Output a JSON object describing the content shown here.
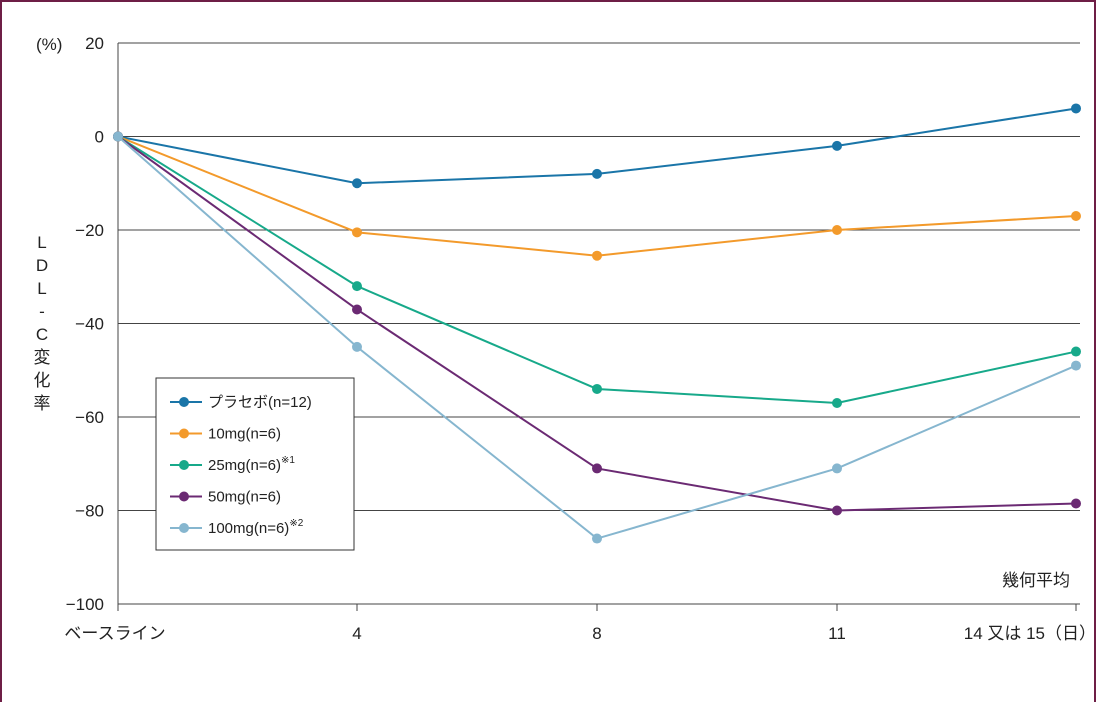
{
  "chart_data": {
    "type": "line",
    "y_unit": "(%)",
    "ylabel": "LDL-C変化率",
    "ylim": [
      -100,
      20
    ],
    "y_ticks": [
      20,
      0,
      -20,
      -40,
      -60,
      -80,
      -100
    ],
    "y_tick_labels": [
      "20",
      "0",
      "−20",
      "−40",
      "−60",
      "−80",
      "−100"
    ],
    "x_tick_labels": [
      "ベースライン",
      "4",
      "8",
      "11",
      "14 又は 15（日）"
    ],
    "x": [
      0,
      4,
      8,
      11,
      15
    ],
    "note": "幾何平均",
    "grid": "horizontal",
    "legend_position": "lower-left",
    "series": [
      {
        "name": "プラセボ(n=12)",
        "sup": "",
        "color": "#1a75a8",
        "values": [
          0,
          -10,
          -8,
          -2,
          6
        ]
      },
      {
        "name": "10mg(n=6)",
        "sup": "",
        "color": "#f39a2b",
        "values": [
          0,
          -20.5,
          -25.5,
          -20,
          -17
        ]
      },
      {
        "name": "25mg(n=6)",
        "sup": "※1",
        "color": "#17a98a",
        "values": [
          0,
          -32,
          -54,
          -57,
          -46
        ]
      },
      {
        "name": "50mg(n=6)",
        "sup": "",
        "color": "#6b2a73",
        "values": [
          0,
          -37,
          -71,
          -80,
          -78.5
        ]
      },
      {
        "name": "100mg(n=6)",
        "sup": "※2",
        "color": "#86b6cf",
        "values": [
          0,
          -45,
          -86,
          -71,
          -49
        ]
      }
    ]
  }
}
